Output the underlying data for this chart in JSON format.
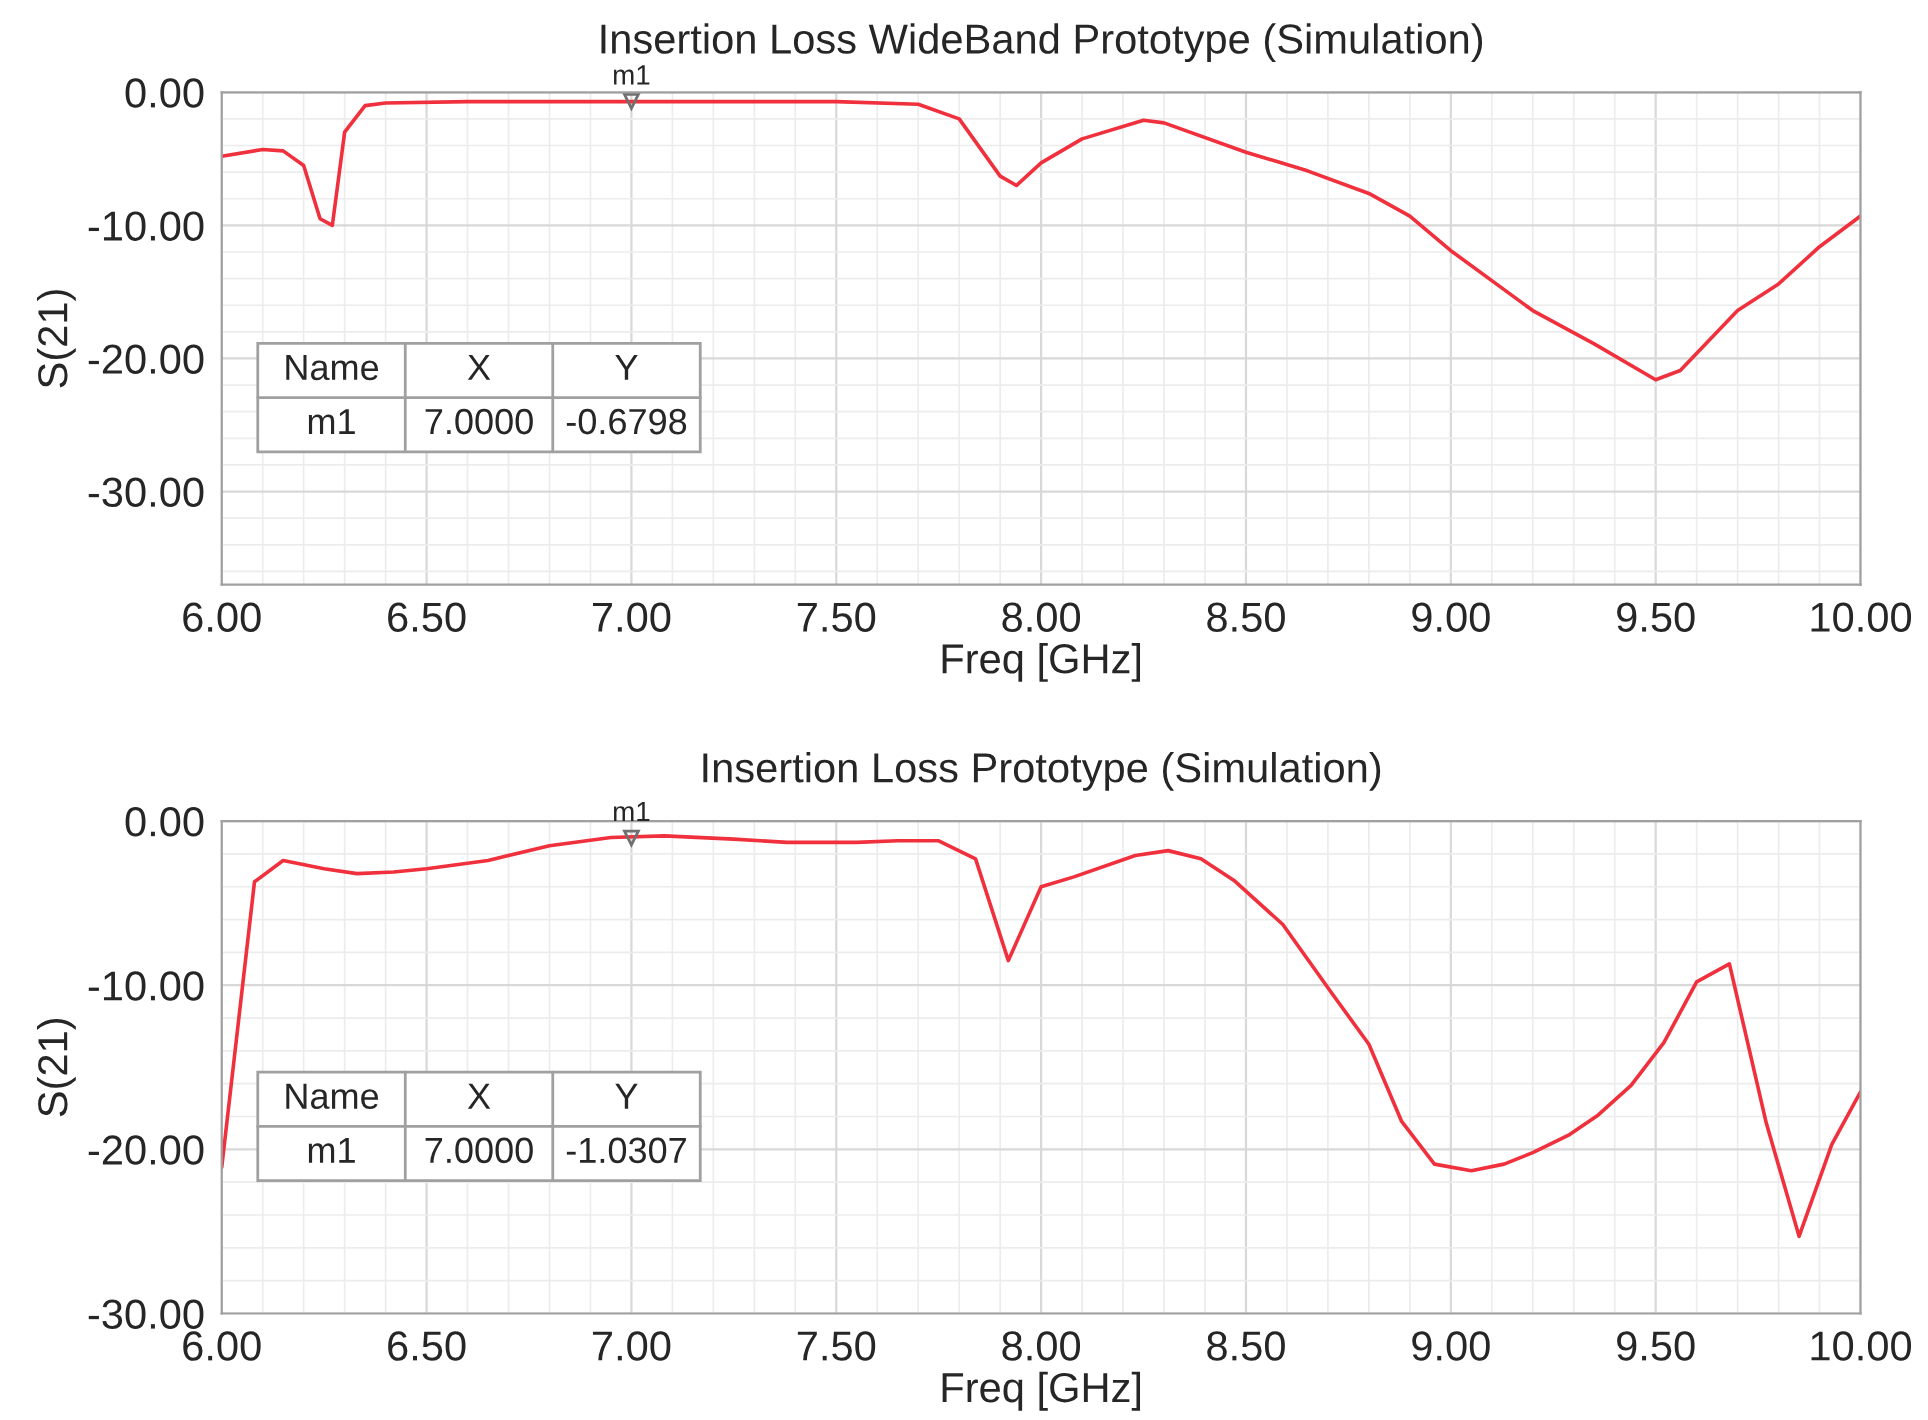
{
  "chart_data": [
    {
      "type": "line",
      "title": "Insertion Loss WideBand Prototype (Simulation)",
      "xlabel": "Freq [GHz]",
      "ylabel": "S(21)",
      "grid": true,
      "legend": false,
      "marker": "none",
      "line_style": "solid",
      "xlim": [
        6.0,
        10.0
      ],
      "ylim": [
        -37,
        0
      ],
      "xticks": [
        {
          "value": 6.0,
          "label": "6.00"
        },
        {
          "value": 6.5,
          "label": "6.50"
        },
        {
          "value": 7.0,
          "label": "7.00"
        },
        {
          "value": 7.5,
          "label": "7.50"
        },
        {
          "value": 8.0,
          "label": "8.00"
        },
        {
          "value": 8.5,
          "label": "8.50"
        },
        {
          "value": 9.0,
          "label": "9.00"
        },
        {
          "value": 9.5,
          "label": "9.50"
        },
        {
          "value": 10.0,
          "label": "10.00"
        }
      ],
      "yticks": [
        {
          "value": 0,
          "label": "0.00"
        },
        {
          "value": -10,
          "label": "-10.00"
        },
        {
          "value": -20,
          "label": "-20.00"
        },
        {
          "value": -30,
          "label": "-30.00"
        }
      ],
      "series": [
        {
          "color": "#f0303c",
          "x": [
            6.0,
            6.1,
            6.15,
            6.2,
            6.24,
            6.27,
            6.3,
            6.35,
            6.4,
            6.6,
            7.0,
            7.5,
            7.7,
            7.8,
            7.9,
            7.94,
            8.0,
            8.1,
            8.25,
            8.3,
            8.5,
            8.65,
            8.8,
            8.9,
            9.0,
            9.2,
            9.35,
            9.5,
            9.56,
            9.7,
            9.8,
            9.9,
            10.0
          ],
          "values": [
            -4.8,
            -4.3,
            -4.4,
            -5.5,
            -9.5,
            -10.0,
            -3.0,
            -1.0,
            -0.8,
            -0.7,
            -0.7,
            -0.7,
            -0.9,
            -2.0,
            -6.3,
            -7.0,
            -5.3,
            -3.5,
            -2.1,
            -2.3,
            -4.5,
            -5.9,
            -7.6,
            -9.3,
            -11.9,
            -16.4,
            -18.9,
            -21.6,
            -20.9,
            -16.4,
            -14.4,
            -11.6,
            -9.3
          ]
        }
      ],
      "annotations": [
        {
          "text": "m1",
          "x": 7.0,
          "y": -0.6798
        },
        "Name",
        "X",
        "Y",
        "m1",
        "7.0000",
        "-0.6798"
      ]
    },
    {
      "type": "line",
      "title": "Insertion Loss Prototype (Simulation)",
      "xlabel": "Freq [GHz]",
      "ylabel": "S(21)",
      "grid": true,
      "legend": false,
      "marker": "none",
      "line_style": "solid",
      "xlim": [
        6.0,
        10.0
      ],
      "ylim": [
        -30,
        0
      ],
      "xticks": [
        {
          "value": 6.0,
          "label": "6.00"
        },
        {
          "value": 6.5,
          "label": "6.50"
        },
        {
          "value": 7.0,
          "label": "7.00"
        },
        {
          "value": 7.5,
          "label": "7.50"
        },
        {
          "value": 8.0,
          "label": "8.00"
        },
        {
          "value": 8.5,
          "label": "8.50"
        },
        {
          "value": 9.0,
          "label": "9.00"
        },
        {
          "value": 9.5,
          "label": "9.50"
        },
        {
          "value": 10.0,
          "label": "10.00"
        }
      ],
      "yticks": [
        {
          "value": 0,
          "label": "0.00"
        },
        {
          "value": -10,
          "label": "-10.00"
        },
        {
          "value": -20,
          "label": "-20.00"
        },
        {
          "value": -30,
          "label": "-30.00"
        }
      ],
      "series": [
        {
          "color": "#f0303c",
          "x": [
            6.0,
            6.08,
            6.15,
            6.25,
            6.33,
            6.42,
            6.5,
            6.65,
            6.8,
            6.95,
            7.08,
            7.25,
            7.38,
            7.55,
            7.65,
            7.75,
            7.84,
            7.92,
            8.0,
            8.08,
            8.23,
            8.31,
            8.39,
            8.47,
            8.59,
            8.71,
            8.8,
            8.88,
            8.96,
            9.05,
            9.13,
            9.2,
            9.29,
            9.36,
            9.44,
            9.52,
            9.6,
            9.68,
            9.77,
            9.85,
            9.93,
            10.0
          ],
          "values": [
            -21.1,
            -3.7,
            -2.4,
            -2.9,
            -3.2,
            -3.1,
            -2.9,
            -2.4,
            -1.5,
            -1.0,
            -0.9,
            -1.1,
            -1.3,
            -1.3,
            -1.2,
            -1.2,
            -2.3,
            -8.5,
            -4.0,
            -3.4,
            -2.1,
            -1.8,
            -2.3,
            -3.6,
            -6.3,
            -10.5,
            -13.6,
            -18.3,
            -20.9,
            -21.3,
            -20.9,
            -20.2,
            -19.1,
            -17.9,
            -16.1,
            -13.5,
            -9.8,
            -8.7,
            -18.4,
            -25.3,
            -19.7,
            -16.5
          ]
        }
      ],
      "annotations": [
        {
          "text": "m1",
          "x": 7.0,
          "y": -1.0307
        },
        "Name",
        "X",
        "Y",
        "m1",
        "7.0000",
        "-1.0307"
      ]
    }
  ]
}
